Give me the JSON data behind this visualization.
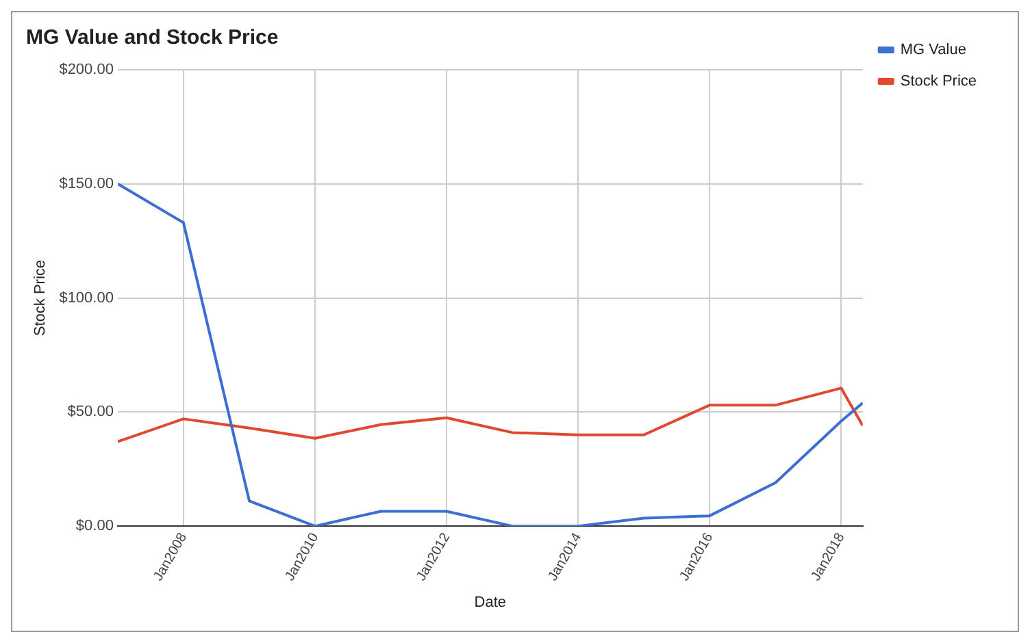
{
  "chart_data": {
    "type": "line",
    "title": "MG Value and Stock Price",
    "xlabel": "Date",
    "ylabel": "Stock Price",
    "x": [
      "2006-12-31",
      "2007-12-31",
      "2008-12-31",
      "2009-12-31",
      "2010-12-31",
      "2011-12-31",
      "2012-12-31",
      "2013-12-31",
      "2014-12-31",
      "2015-12-31",
      "2016-12-31",
      "2017-12-31",
      "2018-04-30"
    ],
    "series": [
      {
        "name": "MG Value",
        "color": "#3d6fd1",
        "values": [
          150,
          133,
          11,
          0,
          6.5,
          6.5,
          0,
          0,
          3.5,
          4.5,
          19,
          46,
          54
        ]
      },
      {
        "name": "Stock Price",
        "color": "#e0492f",
        "values": [
          37,
          47,
          43,
          38.5,
          44.5,
          47.5,
          41,
          40,
          40,
          53,
          53,
          60.5,
          44
        ]
      }
    ],
    "xlim": [
      "2006-12-31",
      "2018-04-30"
    ],
    "xticks": [
      {
        "value": "2008-01-01",
        "label": "Jan2008"
      },
      {
        "value": "2010-01-01",
        "label": "Jan2010"
      },
      {
        "value": "2012-01-01",
        "label": "Jan2012"
      },
      {
        "value": "2014-01-01",
        "label": "Jan2014"
      },
      {
        "value": "2016-01-01",
        "label": "Jan2016"
      },
      {
        "value": "2018-01-01",
        "label": "Jan2018"
      }
    ],
    "ylim": [
      0,
      200
    ],
    "yticks": [
      {
        "value": 0,
        "label": "$0.00"
      },
      {
        "value": 50,
        "label": "$50.00"
      },
      {
        "value": 100,
        "label": "$100.00"
      },
      {
        "value": 150,
        "label": "$150.00"
      },
      {
        "value": 200,
        "label": "$200.00"
      }
    ],
    "grid": true,
    "legend": "top right",
    "marker": "none",
    "line_style": "solid"
  }
}
